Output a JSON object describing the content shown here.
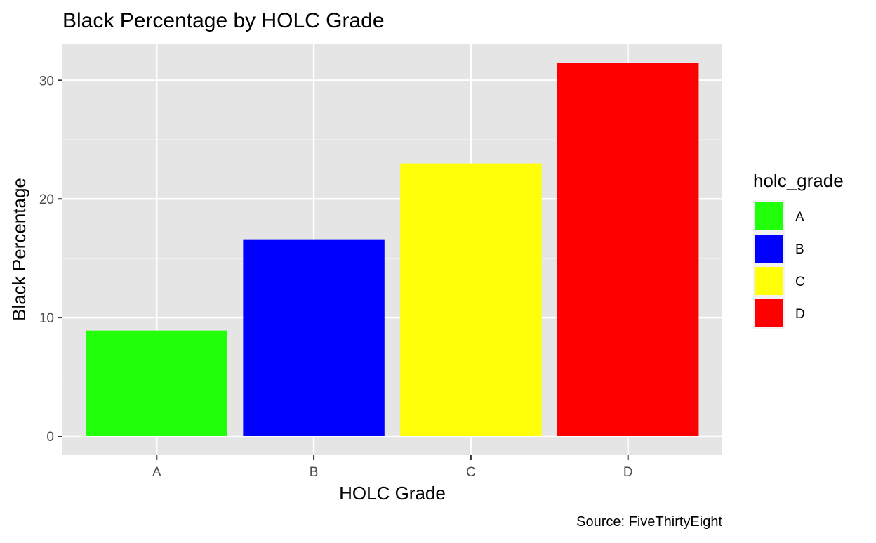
{
  "chart_data": {
    "type": "bar",
    "title": "Black Percentage by HOLC Grade",
    "xlabel": "HOLC Grade",
    "ylabel": "Black Percentage",
    "caption": "Source: FiveThirtyEight",
    "categories": [
      "A",
      "B",
      "C",
      "D"
    ],
    "values": [
      8.9,
      16.6,
      23.0,
      31.5
    ],
    "colors": [
      "#22ff0a",
      "#0000ff",
      "#ffff0a",
      "#ff0000"
    ],
    "ylim": [
      -1.6,
      33.1
    ],
    "y_ticks": [
      0,
      10,
      20,
      30
    ],
    "grid": true,
    "panel_background": "#e5e5e5",
    "legend": {
      "title": "holc_grade",
      "position": "right",
      "items": [
        "A",
        "B",
        "C",
        "D"
      ]
    }
  }
}
